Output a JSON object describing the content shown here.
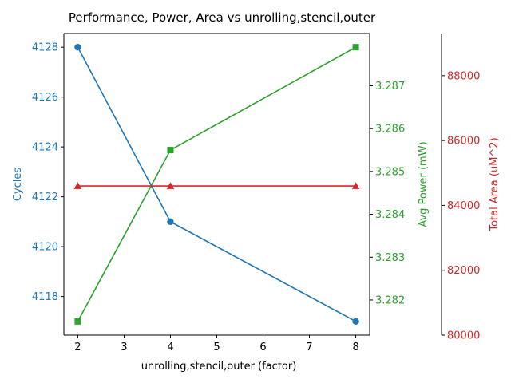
{
  "chart_data": {
    "type": "line",
    "title": "Performance, Power, Area vs unrolling,stencil,outer",
    "xlabel": "unrolling,stencil,outer (factor)",
    "x": [
      2,
      4,
      8
    ],
    "xlim": [
      1.7,
      8.3
    ],
    "xticks": [
      2,
      3,
      4,
      5,
      6,
      7,
      8
    ],
    "series": [
      {
        "name": "Cycles",
        "axis_label": "Cycles",
        "color": "#1f77b4",
        "marker": "circle",
        "values": [
          4128,
          4121,
          4117
        ],
        "ylim": [
          4116.45,
          4128.55
        ],
        "yticks": [
          4118,
          4120,
          4122,
          4124,
          4126,
          4128
        ],
        "axis_position": "left"
      },
      {
        "name": "Avg Power (mW)",
        "axis_label": "Avg Power (mW)",
        "color": "#2ca02c",
        "marker": "square",
        "values": [
          3.2815,
          3.2855,
          3.2879
        ],
        "ylim": [
          3.28118,
          3.28822
        ],
        "yticks": [
          3.282,
          3.283,
          3.284,
          3.285,
          3.286,
          3.287
        ],
        "axis_position": "right"
      },
      {
        "name": "Total Area (uM^2)",
        "axis_label": "Total Area (uM^2)",
        "color": "#d62728",
        "marker": "triangle",
        "values": [
          84600,
          84600,
          84600
        ],
        "ylim": [
          80000,
          89300
        ],
        "yticks": [
          80000,
          82000,
          84000,
          86000,
          88000
        ],
        "axis_position": "right-offset"
      }
    ]
  }
}
